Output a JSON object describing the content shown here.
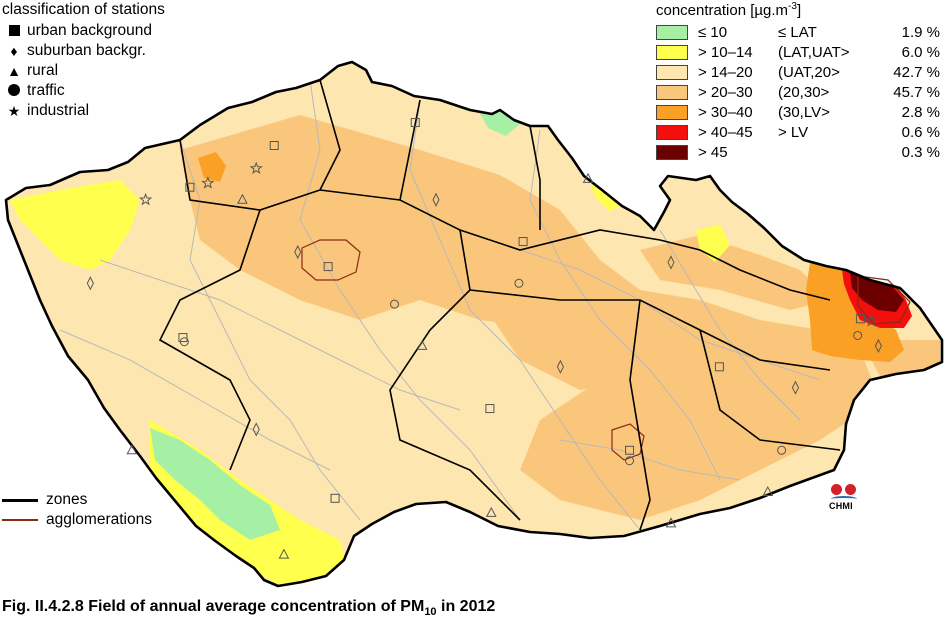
{
  "station_legend": {
    "title": "classification of stations",
    "items": [
      {
        "symbol": "square",
        "label": "urban background"
      },
      {
        "symbol": "diamond",
        "label": "suburban backgr."
      },
      {
        "symbol": "triangle",
        "label": "rural"
      },
      {
        "symbol": "circle",
        "label": "traffic"
      },
      {
        "symbol": "star",
        "label": "industrial"
      }
    ]
  },
  "concentration_legend": {
    "title": "concentration [µg.m",
    "title_exp": "-3",
    "title_end": "]",
    "classes": [
      {
        "range": "≤ 10",
        "code": "≤ LAT",
        "percent": "1.9 %",
        "color": "#a6f0a6"
      },
      {
        "range": "> 10–14",
        "code": "(LAT,UAT>",
        "percent": "6.0 %",
        "color": "#ffff4d"
      },
      {
        "range": "> 14–20",
        "code": "(UAT,20>",
        "percent": "42.7 %",
        "color": "#fde6b0"
      },
      {
        "range": "> 20–30",
        "code": "(20,30>",
        "percent": "45.7 %",
        "color": "#fac67c"
      },
      {
        "range": "> 30–40",
        "code": "(30,LV>",
        "percent": "2.8 %",
        "color": "#f9a025"
      },
      {
        "range": "> 40–45",
        "code": "> LV",
        "percent": "0.6 %",
        "color": "#f40f0f"
      },
      {
        "range": "> 45",
        "code": "",
        "percent": "0.3 %",
        "color": "#6c0000"
      }
    ]
  },
  "line_legend": {
    "zones_label": "zones",
    "agglomerations_label": "agglomerations",
    "zones_color": "#000000",
    "agglomerations_color": "#8b2a14"
  },
  "logo": {
    "text": "CHMI"
  },
  "caption": {
    "prefix": "Fig. II.4.2.8  Field of annual average concentration of PM",
    "subscript": "10",
    "suffix": " in 2012"
  },
  "map": {
    "country_fill": "#fde6b0",
    "border_color": "#000000",
    "stations": [
      {
        "type": "square",
        "lon": 14.42,
        "lat": 50.08
      },
      {
        "type": "square",
        "lon": 16.6,
        "lat": 49.2
      },
      {
        "type": "square",
        "lon": 18.27,
        "lat": 49.83
      },
      {
        "type": "square",
        "lon": 13.37,
        "lat": 49.74
      },
      {
        "type": "square",
        "lon": 14.47,
        "lat": 48.97
      },
      {
        "type": "square",
        "lon": 15.05,
        "lat": 50.77
      },
      {
        "type": "square",
        "lon": 15.83,
        "lat": 50.2
      },
      {
        "type": "square",
        "lon": 17.25,
        "lat": 49.6
      },
      {
        "type": "square",
        "lon": 15.59,
        "lat": 49.4
      },
      {
        "type": "square",
        "lon": 14.03,
        "lat": 50.66
      },
      {
        "type": "square",
        "lon": 13.42,
        "lat": 50.46
      },
      {
        "type": "diamond",
        "lon": 14.2,
        "lat": 50.15
      },
      {
        "type": "diamond",
        "lon": 15.2,
        "lat": 50.4
      },
      {
        "type": "diamond",
        "lon": 16.1,
        "lat": 49.6
      },
      {
        "type": "diamond",
        "lon": 17.8,
        "lat": 49.5
      },
      {
        "type": "diamond",
        "lon": 18.4,
        "lat": 49.7
      },
      {
        "type": "diamond",
        "lon": 13.9,
        "lat": 49.3
      },
      {
        "type": "diamond",
        "lon": 16.9,
        "lat": 50.1
      },
      {
        "type": "diamond",
        "lon": 12.7,
        "lat": 50.0
      },
      {
        "type": "triangle",
        "lon": 13.0,
        "lat": 49.2
      },
      {
        "type": "triangle",
        "lon": 14.1,
        "lat": 48.7
      },
      {
        "type": "triangle",
        "lon": 15.1,
        "lat": 49.7
      },
      {
        "type": "triangle",
        "lon": 16.3,
        "lat": 50.5
      },
      {
        "type": "triangle",
        "lon": 17.6,
        "lat": 49.0
      },
      {
        "type": "triangle",
        "lon": 13.8,
        "lat": 50.4
      },
      {
        "type": "triangle",
        "lon": 15.6,
        "lat": 48.9
      },
      {
        "type": "triangle",
        "lon": 16.9,
        "lat": 48.85
      },
      {
        "type": "circle",
        "lon": 14.9,
        "lat": 49.9
      },
      {
        "type": "circle",
        "lon": 16.6,
        "lat": 49.15
      },
      {
        "type": "circle",
        "lon": 18.25,
        "lat": 49.75
      },
      {
        "type": "circle",
        "lon": 13.38,
        "lat": 49.72
      },
      {
        "type": "circle",
        "lon": 15.8,
        "lat": 50.0
      },
      {
        "type": "circle",
        "lon": 17.7,
        "lat": 49.2
      },
      {
        "type": "star",
        "lon": 13.9,
        "lat": 50.55
      },
      {
        "type": "star",
        "lon": 13.55,
        "lat": 50.48
      },
      {
        "type": "star",
        "lon": 18.35,
        "lat": 49.82
      },
      {
        "type": "star",
        "lon": 13.1,
        "lat": 50.4
      }
    ]
  }
}
